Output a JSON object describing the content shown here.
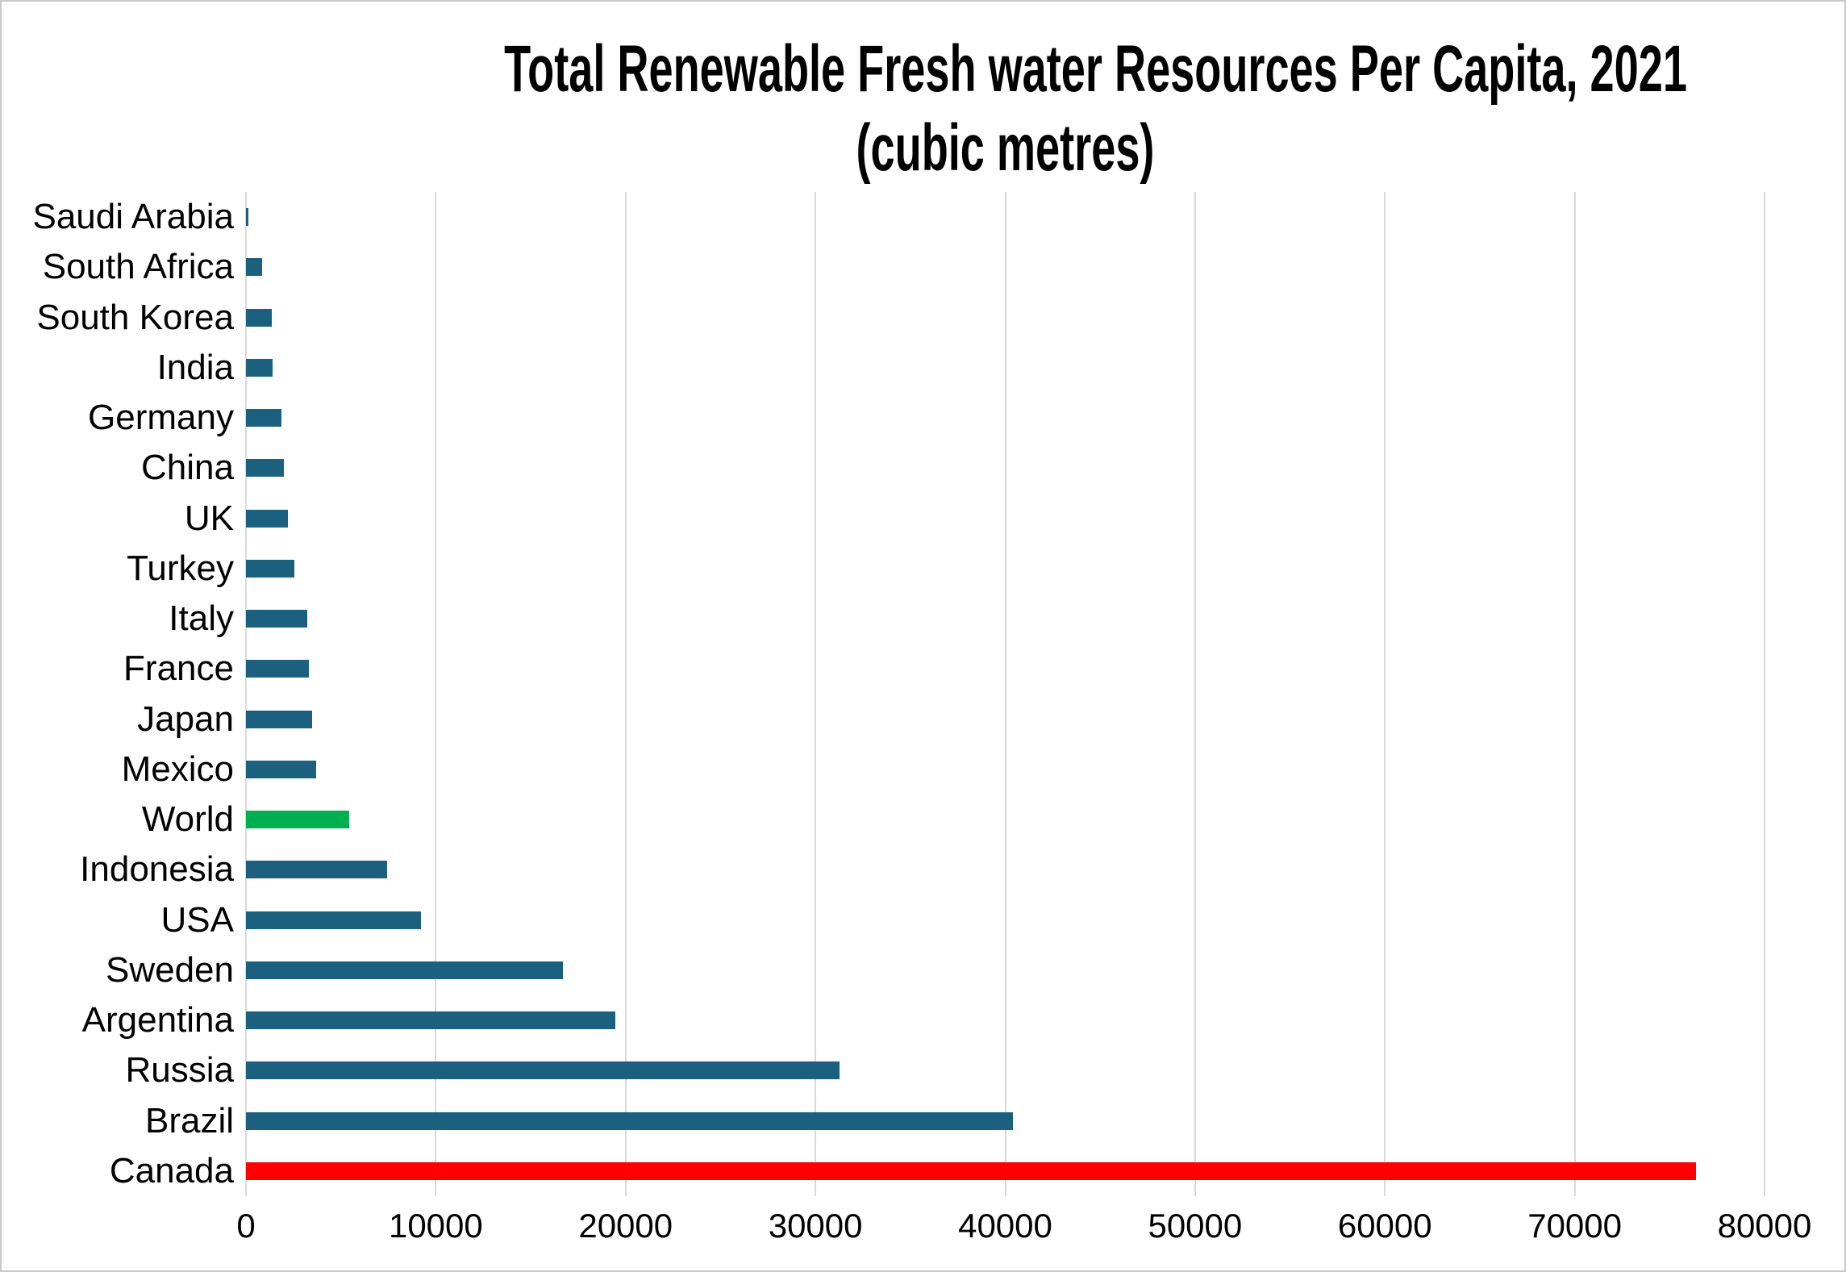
{
  "chart_data": {
    "type": "bar",
    "orientation": "horizontal",
    "title": "Total Renewable Fresh water Resources Per Capita, 2021",
    "subtitle": "(cubic metres)",
    "categories": [
      "Saudi Arabia",
      "South Africa",
      "South Korea",
      "India",
      "Germany",
      "China",
      "UK",
      "Turkey",
      "Italy",
      "France",
      "Japan",
      "Mexico",
      "World",
      "Indonesia",
      "USA",
      "Sweden",
      "Argentina",
      "Russia",
      "Brazil",
      "Canada"
    ],
    "values": [
      120,
      850,
      1360,
      1390,
      1860,
      1980,
      2190,
      2530,
      3250,
      3300,
      3480,
      3680,
      5430,
      7420,
      9220,
      16690,
      19460,
      31260,
      40410,
      76400
    ],
    "default_bar_color": "#1b617f",
    "highlight_colors": {
      "World": "#00b050",
      "Canada": "#ff0000"
    },
    "xlim": [
      0,
      80000
    ],
    "xticks": [
      0,
      10000,
      20000,
      30000,
      40000,
      50000,
      60000,
      70000,
      80000
    ],
    "grid": true,
    "gridline_color": "#d9d9d9",
    "legend_position": "none"
  }
}
